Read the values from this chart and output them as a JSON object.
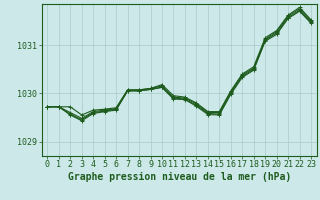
{
  "background_color": "#cce8e8",
  "grid_color": "#aacccc",
  "line_color": "#1e5c1e",
  "text_color": "#1a3a1a",
  "xlabel": "Graphe pression niveau de la mer (hPa)",
  "xlim": [
    -0.5,
    23.5
  ],
  "ylim": [
    1028.7,
    1031.85
  ],
  "yticks": [
    1029,
    1030,
    1031
  ],
  "xticks": [
    0,
    1,
    2,
    3,
    4,
    5,
    6,
    7,
    8,
    9,
    10,
    11,
    12,
    13,
    14,
    15,
    16,
    17,
    18,
    19,
    20,
    21,
    22,
    23
  ],
  "series": [
    [
      1029.72,
      1029.72,
      1029.72,
      1029.55,
      1029.65,
      1029.67,
      1029.7,
      1030.07,
      1030.07,
      1030.1,
      1030.18,
      1029.95,
      1029.92,
      1029.8,
      1029.62,
      1029.62,
      1030.05,
      1030.4,
      1030.55,
      1031.15,
      1031.3,
      1031.62,
      1031.78,
      1031.52
    ],
    [
      1029.72,
      1029.72,
      1029.6,
      1029.48,
      1029.62,
      1029.65,
      1029.68,
      1030.07,
      1030.07,
      1030.1,
      1030.15,
      1029.92,
      1029.9,
      1029.78,
      1029.6,
      1029.6,
      1030.03,
      1030.38,
      1030.52,
      1031.12,
      1031.28,
      1031.6,
      1031.75,
      1031.5
    ],
    [
      1029.72,
      1029.72,
      1029.57,
      1029.45,
      1029.6,
      1029.63,
      1029.67,
      1030.05,
      1030.05,
      1030.08,
      1030.13,
      1029.9,
      1029.88,
      1029.75,
      1029.58,
      1029.57,
      1030.0,
      1030.35,
      1030.5,
      1031.1,
      1031.25,
      1031.57,
      1031.72,
      1031.47
    ],
    [
      1029.72,
      1029.72,
      1029.55,
      1029.43,
      1029.58,
      1029.62,
      1029.65,
      1030.05,
      1030.05,
      1030.08,
      1030.12,
      1029.88,
      1029.87,
      1029.73,
      1029.56,
      1029.55,
      1029.98,
      1030.33,
      1030.48,
      1031.08,
      1031.22,
      1031.55,
      1031.7,
      1031.45
    ]
  ],
  "marker": "+",
  "marker_size": 3,
  "line_width": 0.8,
  "xlabel_fontsize": 7,
  "tick_fontsize": 6,
  "figure_width": 3.2,
  "figure_height": 2.0,
  "dpi": 100
}
